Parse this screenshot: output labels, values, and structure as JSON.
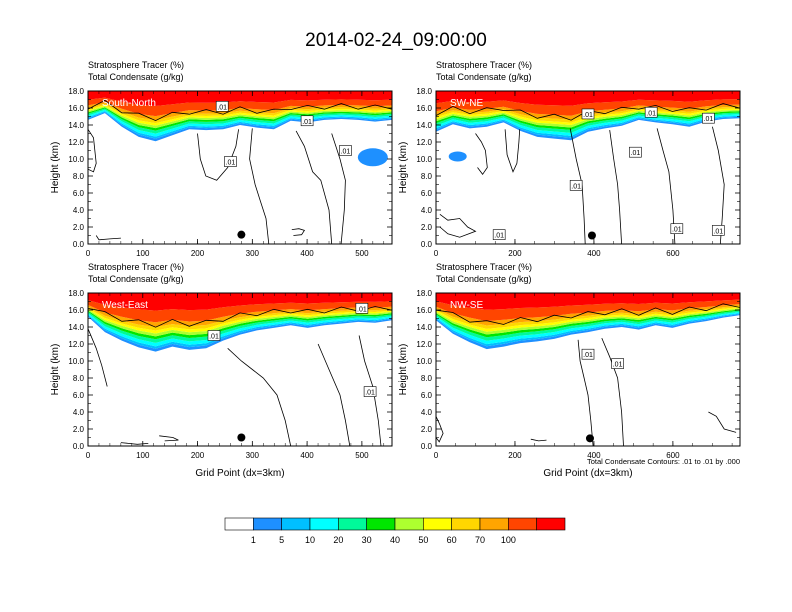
{
  "figure": {
    "title": "2014-02-24_09:00:00",
    "colorbar": {
      "levels": [
        "1",
        "5",
        "10",
        "20",
        "30",
        "40",
        "50",
        "60",
        "70",
        "100"
      ],
      "colors": [
        "#ffffff",
        "#1e90ff",
        "#00bfff",
        "#00ffff",
        "#00fa9a",
        "#00e600",
        "#adff2f",
        "#ffff00",
        "#ffd700",
        "#ffa500",
        "#ff4500",
        "#ff0000"
      ]
    },
    "footnote": "Total Condensate Contours: .01 to .01 by .000",
    "panel_header": {
      "line1": "Stratosphere Tracer   (%)",
      "line2": "Total Condensate   (g/kg)"
    }
  },
  "chart_data": [
    {
      "type": "heatmap",
      "section": "South-North",
      "ylabel": "Height (km)",
      "xlabel": "",
      "xlim": [
        0,
        555
      ],
      "ylim": [
        0,
        18
      ],
      "xticks": [
        "0",
        "100",
        "200",
        "300",
        "400",
        "500"
      ],
      "yticks": [
        "0.0",
        "2.0",
        "4.0",
        "6.0",
        "8.0",
        "10.0",
        "12.0",
        "14.0",
        "16.0",
        "18.0"
      ],
      "tracer_base_km": [
        14.6,
        15.4,
        13.8,
        12.6,
        12.1,
        12.8,
        13.5,
        13.4,
        13.5,
        14.0,
        13.7,
        13.5,
        14.5,
        14.3,
        14.6,
        14.7,
        14.6,
        14.4,
        14.6
      ],
      "contour_labels": [
        ".01",
        ".01",
        ".01",
        ".01"
      ],
      "marker_x": 280,
      "marker_y_km": 1.1
    },
    {
      "type": "heatmap",
      "section": "SW-NE",
      "ylabel": "Height (km)",
      "xlabel": "",
      "xlim": [
        0,
        770
      ],
      "ylim": [
        0,
        18
      ],
      "xticks": [
        "0",
        "200",
        "400",
        "600"
      ],
      "yticks": [
        "0.0",
        "2.0",
        "4.0",
        "6.0",
        "8.0",
        "10.0",
        "12.0",
        "14.0",
        "16.0",
        "18.0"
      ],
      "tracer_base_km": [
        13.2,
        14.1,
        13.6,
        13.8,
        14.3,
        13.3,
        12.6,
        12.4,
        12.2,
        13.2,
        13.6,
        13.9,
        14.6,
        14.3,
        14.1,
        13.8,
        14.4,
        14.7,
        14.8
      ],
      "contour_labels": [
        ".01",
        ".01",
        ".01",
        ".01",
        ".01",
        ".01",
        ".01",
        ".01"
      ],
      "marker_x": 395,
      "marker_y_km": 1.0
    },
    {
      "type": "heatmap",
      "section": "West-East",
      "ylabel": "Height (km)",
      "xlabel": "Grid Point (dx=3km)",
      "xlim": [
        0,
        555
      ],
      "ylim": [
        0,
        18
      ],
      "xticks": [
        "0",
        "100",
        "200",
        "300",
        "400",
        "500"
      ],
      "yticks": [
        "0.0",
        "2.0",
        "4.0",
        "6.0",
        "8.0",
        "10.0",
        "12.0",
        "14.0",
        "16.0",
        "18.0"
      ],
      "tracer_base_km": [
        15.2,
        13.4,
        12.4,
        11.6,
        11.1,
        11.7,
        11.3,
        11.5,
        12.4,
        13.1,
        13.6,
        13.9,
        14.2,
        13.9,
        14.2,
        14.4,
        14.6,
        14.5,
        14.8
      ],
      "contour_labels": [
        ".01",
        ".01",
        ".01"
      ],
      "marker_x": 280,
      "marker_y_km": 1.0
    },
    {
      "type": "heatmap",
      "section": "NW-SE",
      "ylabel": "Height (km)",
      "xlabel": "Grid Point (dx=3km)",
      "xlim": [
        0,
        770
      ],
      "ylim": [
        0,
        18
      ],
      "xticks": [
        "0",
        "200",
        "400",
        "600"
      ],
      "yticks": [
        "0.0",
        "2.0",
        "4.0",
        "6.0",
        "8.0",
        "10.0",
        "12.0",
        "14.0",
        "16.0",
        "18.0"
      ],
      "tracer_base_km": [
        14.8,
        13.2,
        12.2,
        11.4,
        11.7,
        12.1,
        12.3,
        12.6,
        13.1,
        13.4,
        13.8,
        14.0,
        13.7,
        14.2,
        13.9,
        14.4,
        14.7,
        15.1,
        15.4
      ],
      "contour_labels": [
        ".01",
        ".01"
      ],
      "marker_x": 390,
      "marker_y_km": 0.9
    }
  ]
}
